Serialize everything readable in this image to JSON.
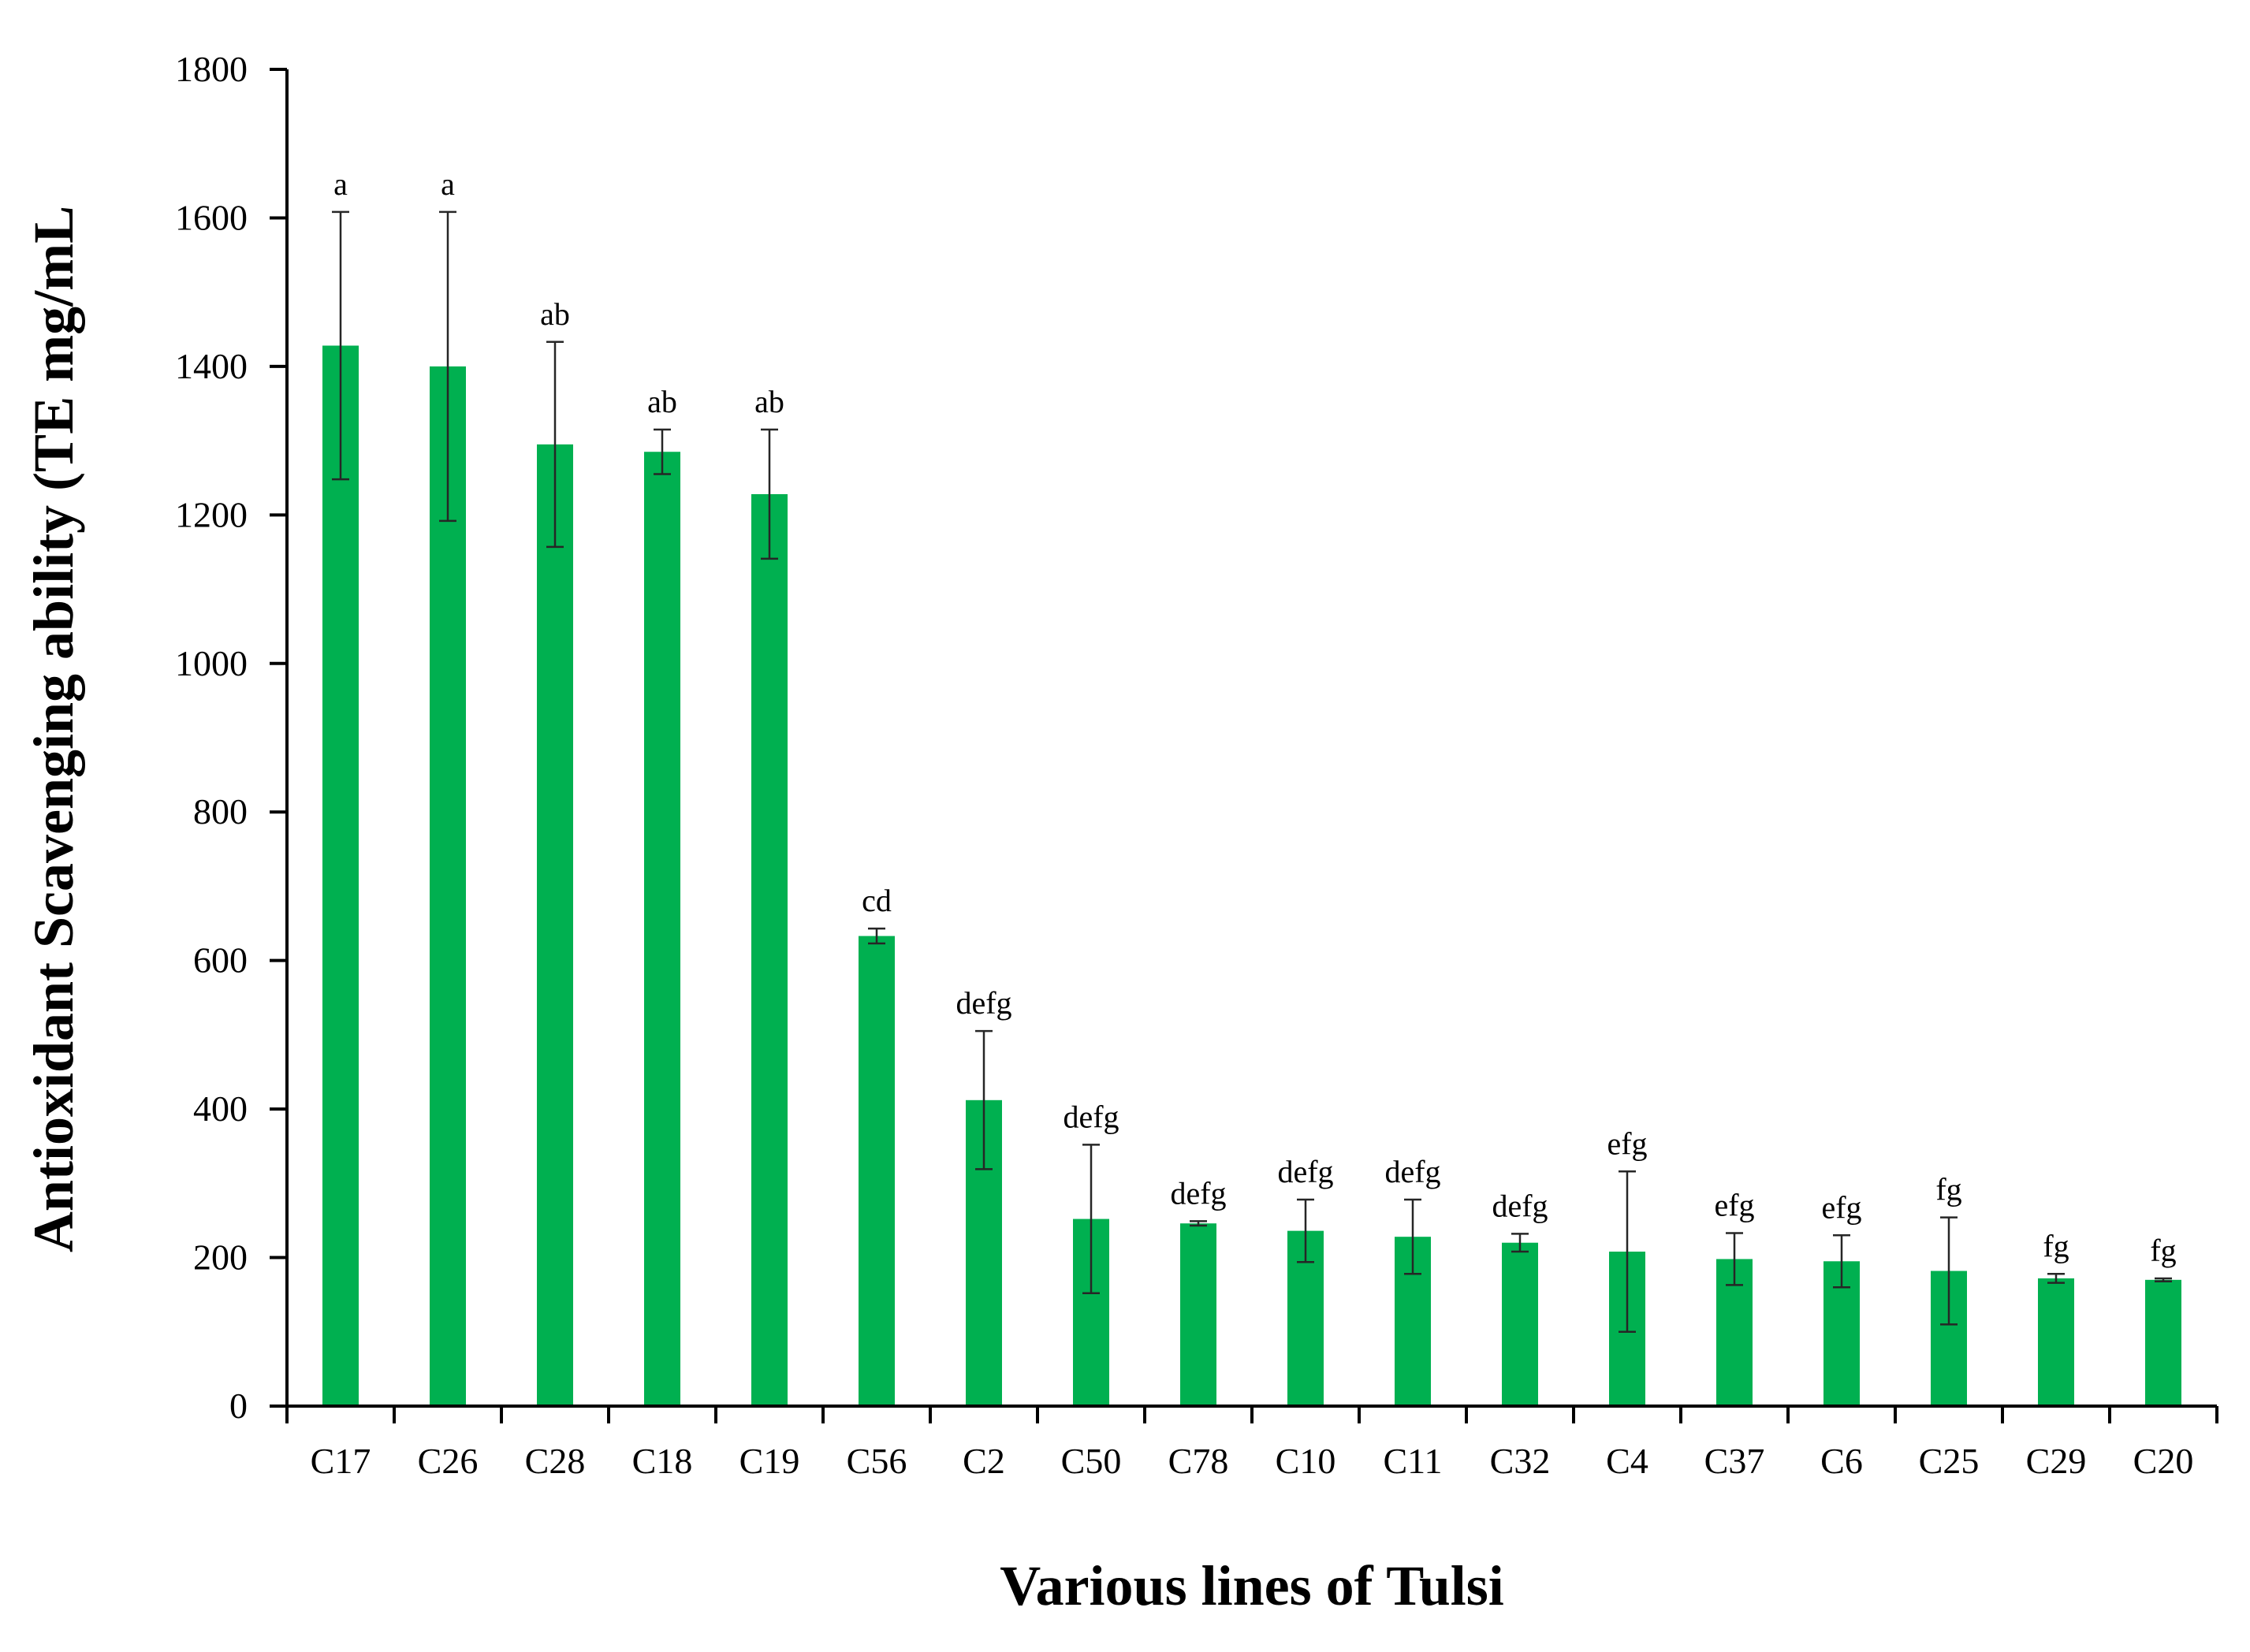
{
  "chart_data": {
    "type": "bar",
    "title": "",
    "xlabel": "Various lines of Tulsi",
    "ylabel": "Antioxidant Scavenging ability (TE mg/mL",
    "ylim": [
      0,
      1800
    ],
    "yticks": [
      0,
      200,
      400,
      600,
      800,
      1000,
      1200,
      1400,
      1600,
      1800
    ],
    "grid": false,
    "legend": "none",
    "bar_color": "#00b050",
    "errorbar_color": "#262626",
    "categories": [
      "C17",
      "C26",
      "C28",
      "C18",
      "C19",
      "C56",
      "C2",
      "C50",
      "C78",
      "C10",
      "C11",
      "C32",
      "C4",
      "C37",
      "C6",
      "C25",
      "C29",
      "C20"
    ],
    "values": [
      1428,
      1400,
      1295,
      1285,
      1228,
      633,
      412,
      252,
      246,
      236,
      228,
      220,
      208,
      198,
      195,
      182,
      172,
      170
    ],
    "errors": [
      180,
      208,
      138,
      30,
      87,
      10,
      93,
      100,
      3,
      42,
      50,
      12,
      108,
      35,
      35,
      72,
      6,
      2
    ],
    "significance": [
      "a",
      "a",
      "ab",
      "ab",
      "ab",
      "cd",
      "defg",
      "defg",
      "defg",
      "defg",
      "defg",
      "defg",
      "efg",
      "efg",
      "efg",
      "fg",
      "fg",
      "fg"
    ]
  }
}
